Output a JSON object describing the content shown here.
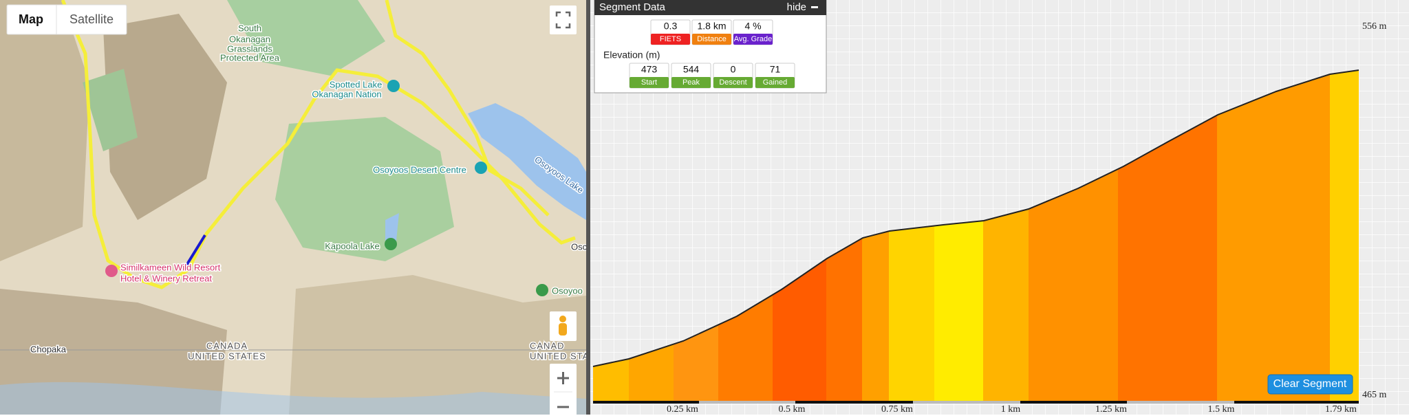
{
  "map": {
    "buttons": {
      "map": "Map",
      "satellite": "Satellite"
    },
    "labels": {
      "grasslands": [
        "South",
        "Okanagan",
        "Grasslands",
        "Protected Area"
      ],
      "spotted_lake": [
        "Spotted Lake",
        "Okanagan Nation"
      ],
      "desert_centre": "Osoyoos Desert Centre",
      "osoyoos_lake": "Osoyoos Lake",
      "kapoola": "Kapoola Lake",
      "resort": [
        "Similkameen Wild Resort",
        "Hotel & Winery Retreat"
      ],
      "chopaka": "Chopaka",
      "border_left": [
        "CANADA",
        "UNITED STATES"
      ],
      "border_right": [
        "CANAD",
        "UNITED STATES"
      ],
      "osoyoos_right": "Osoyoo",
      "osoyoos_town": "Osc"
    }
  },
  "segment_data": {
    "title": "Segment Data",
    "hide": "hide",
    "stats": [
      {
        "value": 0.3,
        "label": "FIETS"
      },
      {
        "value": "1.8 km",
        "label": "Distance"
      },
      {
        "value": "4 %",
        "label": "Avg. Grade"
      }
    ],
    "elevation": {
      "title": "Elevation (m)",
      "stats": [
        {
          "value": 473,
          "label": "Start"
        },
        {
          "value": 544,
          "label": "Peak"
        },
        {
          "value": 0,
          "label": "Descent"
        },
        {
          "value": 71,
          "label": "Gained"
        }
      ]
    }
  },
  "profile": {
    "y_top": "556 m",
    "y_bottom": "465 m",
    "x_labels": [
      "0.25 km",
      "0.5 km",
      "0.75 km",
      "1 km",
      "1.25 km",
      "1.5 km",
      "1.79 km"
    ],
    "clear_button": "Clear Segment"
  }
}
